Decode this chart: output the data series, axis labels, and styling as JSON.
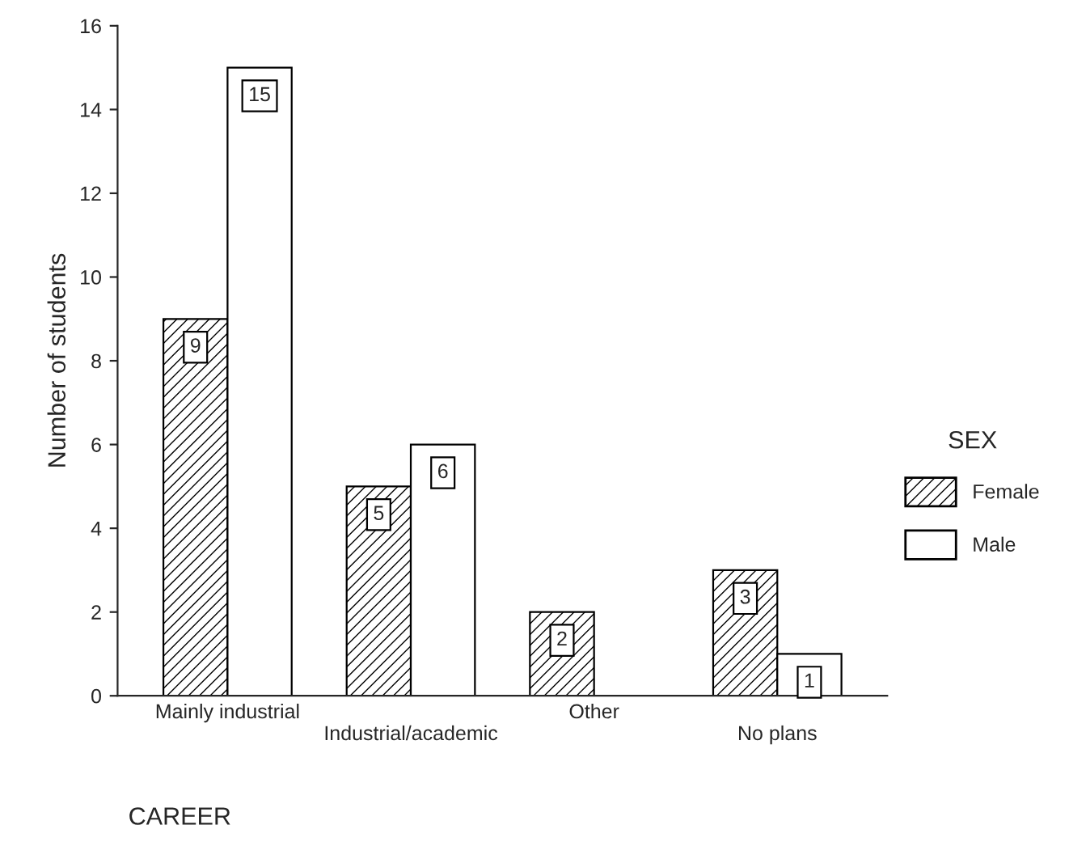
{
  "chart_data": {
    "type": "bar",
    "xlabel": "CAREER",
    "ylabel": "Number of students",
    "legend_title": "SEX",
    "categories": [
      "Mainly industrial",
      "Industrial/academic",
      "Other",
      "No plans"
    ],
    "series": [
      {
        "name": "Female",
        "color": "#000000",
        "values": [
          9,
          5,
          2,
          3
        ],
        "value_labels": [
          "9",
          "5",
          "2",
          "3"
        ]
      },
      {
        "name": "Male",
        "color": "#ffffff",
        "values": [
          15,
          6,
          0,
          1
        ],
        "value_labels": [
          "15",
          "6",
          null,
          "1"
        ]
      }
    ],
    "ylim": [
      0,
      16
    ],
    "yticks": [
      0,
      2,
      4,
      6,
      8,
      10,
      12,
      14,
      16
    ],
    "grid": false,
    "legend": "right"
  }
}
